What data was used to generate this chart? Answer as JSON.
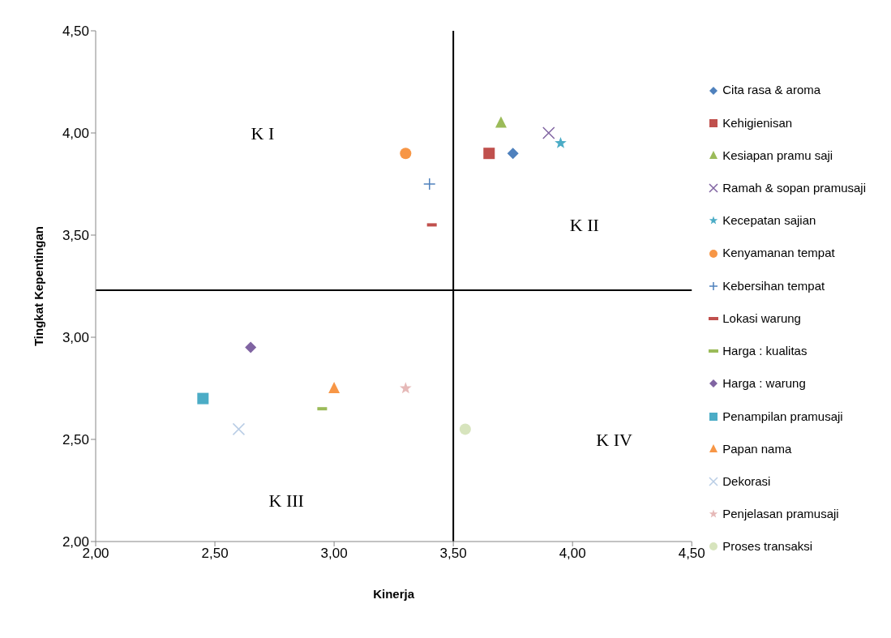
{
  "chart_data": {
    "type": "scatter",
    "xlabel": "Kinerja",
    "ylabel": "Tingkat Kepentingan",
    "xlim": [
      2,
      4.5
    ],
    "ylim": [
      2,
      4.5
    ],
    "xticks": [
      {
        "value": 2,
        "label": "2,00"
      },
      {
        "value": 2.5,
        "label": "2,50"
      },
      {
        "value": 3,
        "label": "3,00"
      },
      {
        "value": 3.5,
        "label": "3,50"
      },
      {
        "value": 4,
        "label": "4,00"
      },
      {
        "value": 4.5,
        "label": "4,50"
      }
    ],
    "yticks": [
      {
        "value": 2,
        "label": "2,00"
      },
      {
        "value": 2.5,
        "label": "2,50"
      },
      {
        "value": 3,
        "label": "3,00"
      },
      {
        "value": 3.5,
        "label": "3,50"
      },
      {
        "value": 4,
        "label": "4,00"
      },
      {
        "value": 4.5,
        "label": "4,50"
      }
    ],
    "legend": "right",
    "series": [
      {
        "name": "Cita rasa & aroma",
        "color": "#4f81bd",
        "marker": "diamond",
        "x": [
          3.75
        ],
        "values": [
          3.9
        ]
      },
      {
        "name": "Kehigienisan",
        "color": "#c0504d",
        "marker": "square",
        "x": [
          3.65
        ],
        "values": [
          3.9
        ]
      },
      {
        "name": "Kesiapan pramu saji",
        "color": "#9bbb59",
        "marker": "triangle",
        "x": [
          3.7
        ],
        "values": [
          4.05
        ]
      },
      {
        "name": "Ramah & sopan pramusaji",
        "color": "#8064a2",
        "marker": "cross",
        "x": [
          3.9
        ],
        "values": [
          4.0
        ]
      },
      {
        "name": "Kecepatan sajian",
        "color": "#4bacc6",
        "marker": "star",
        "x": [
          3.95
        ],
        "values": [
          3.95
        ]
      },
      {
        "name": "Kenyamanan tempat",
        "color": "#f79646",
        "marker": "circle",
        "x": [
          3.3
        ],
        "values": [
          3.9
        ]
      },
      {
        "name": "Kebersihan tempat",
        "color": "#4f81bd",
        "marker": "plus",
        "x": [
          3.4
        ],
        "values": [
          3.75
        ]
      },
      {
        "name": "Lokasi warung",
        "color": "#c0504d",
        "x": [
          3.41
        ],
        "values": [
          3.55
        ]
      },
      {
        "name": "Harga : kualitas",
        "color": "#9bbb59",
        "x": [
          2.95
        ],
        "values": [
          2.65
        ]
      },
      {
        "name": "Harga : warung",
        "color": "#8064a2",
        "marker": "diamond",
        "x": [
          2.65
        ],
        "values": [
          2.95
        ]
      },
      {
        "name": "Penampilan pramusaji",
        "color": "#4bacc6",
        "marker": "square",
        "x": [
          2.45
        ],
        "values": [
          2.7
        ]
      },
      {
        "name": "Papan nama",
        "color": "#f79646",
        "marker": "triangle",
        "x": [
          3.0
        ],
        "values": [
          2.75
        ]
      },
      {
        "name": "Dekorasi",
        "color": "#b9cde5",
        "marker": "cross",
        "x": [
          2.6
        ],
        "values": [
          2.55
        ]
      },
      {
        "name": "Penjelasan pramusaji",
        "color": "#e6b9b8",
        "marker": "star",
        "x": [
          3.3
        ],
        "values": [
          2.75
        ]
      },
      {
        "name": "Proses transaksi",
        "color": "#d7e4bd",
        "marker": "circle",
        "x": [
          3.55
        ],
        "values": [
          2.55
        ]
      }
    ],
    "ref_lines": [
      {
        "axis": "x",
        "value": 3.5,
        "color": "#000000"
      },
      {
        "axis": "y",
        "value": 3.23,
        "color": "#000000"
      }
    ],
    "annotations": [
      "K I",
      "K II",
      "K III",
      "K IV"
    ]
  }
}
